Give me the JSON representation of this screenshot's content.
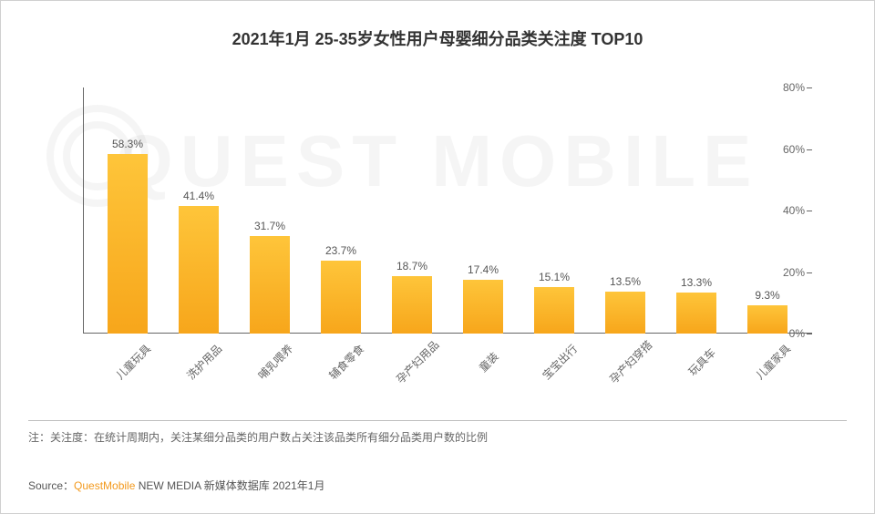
{
  "title": "2021年1月 25-35岁女性用户母婴细分品类关注度 TOP10",
  "watermark": "QUEST MOBILE",
  "chart": {
    "type": "bar",
    "categories": [
      "儿童玩具",
      "洗护用品",
      "哺乳喂养",
      "辅食零食",
      "孕产妇用品",
      "童装",
      "宝宝出行",
      "孕产妇穿搭",
      "玩具车",
      "儿童家具"
    ],
    "values": [
      58.3,
      41.4,
      31.7,
      23.7,
      18.7,
      17.4,
      15.1,
      13.5,
      13.3,
      9.3
    ],
    "value_suffix": "%",
    "bar_gradient_top": "#fec53a",
    "bar_gradient_bottom": "#f7a61b",
    "y": {
      "min": 0,
      "max": 80,
      "ticks": [
        0,
        20,
        40,
        60,
        80
      ],
      "tick_suffix": "%"
    },
    "title_fontsize": 18,
    "label_fontsize": 12,
    "value_fontsize": 12,
    "background_color": "#ffffff",
    "axis_color": "#666666",
    "x_label_rotation_deg": -45,
    "bar_width_ratio": 0.56
  },
  "note": "注：关注度：在统计周期内，关注某细分品类的用户数占关注该品类所有细分品类用户数的比例",
  "source_prefix": "Source：",
  "source_brand": "QuestMobile",
  "source_rest": " NEW MEDIA 新媒体数据库 2021年1月"
}
